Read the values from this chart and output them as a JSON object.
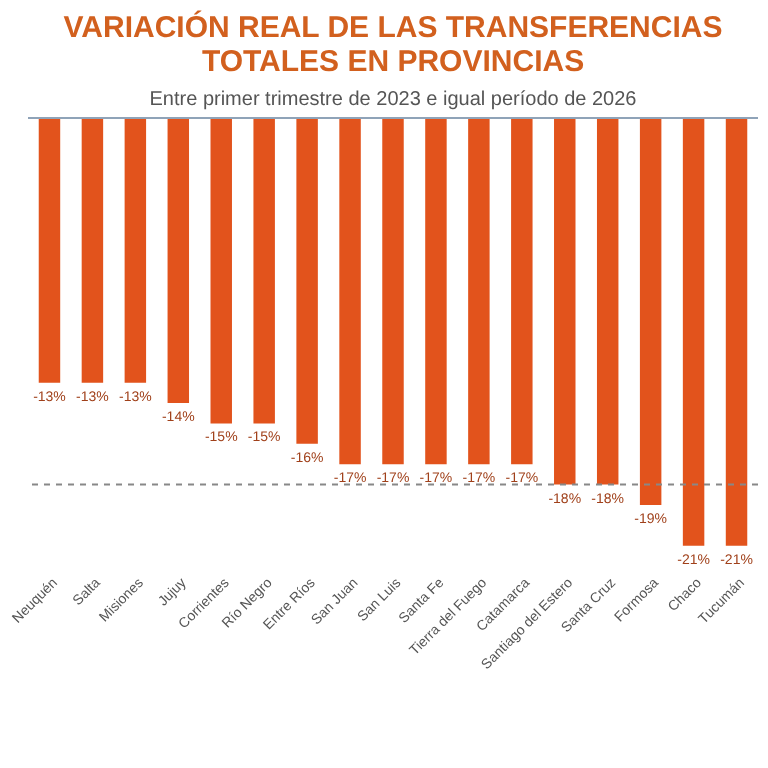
{
  "chart_data": {
    "type": "bar",
    "title": [
      "VARIACIÓN REAL DE LAS TRANSFERENCIAS",
      "TOTALES EN PROVINCIAS"
    ],
    "subtitle": "Entre primer trimestre de 2023 e igual período de 2026",
    "categories": [
      "Neuquén",
      "Salta",
      "Misiones",
      "Jujuy",
      "Corrientes",
      "Río Negro",
      "Entre Ríos",
      "San Juan",
      "San Luis",
      "Santa Fe",
      "Tierra del Fuego",
      "Catamarca",
      "Santiago del Estero",
      "Santa Cruz",
      "Formosa",
      "Chaco",
      "Tucumán"
    ],
    "values": [
      -13,
      -13,
      -13,
      -14,
      -15,
      -15,
      -16,
      -17,
      -17,
      -17,
      -17,
      -17,
      -18,
      -18,
      -19,
      -21,
      -21
    ],
    "value_labels": [
      "-13%",
      "-13%",
      "-13%",
      "-14%",
      "-15%",
      "-15%",
      "-16%",
      "-17%",
      "-17%",
      "-17%",
      "-17%",
      "-17%",
      "-18%",
      "-18%",
      "-19%",
      "-21%",
      "-21%"
    ],
    "color": "#e2531c",
    "tick_labels": "x",
    "ref_lines": [
      {
        "axis": "y",
        "value": -18,
        "line_style": "dashed",
        "color": "#888888"
      }
    ]
  }
}
